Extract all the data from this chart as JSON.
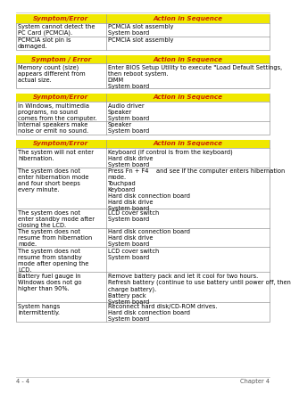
{
  "bg_color": "#ffffff",
  "header_bg": "#f0e800",
  "header_text_color": "#cc2200",
  "body_text_color": "#000000",
  "border_color": "#999999",
  "table1": {
    "header": [
      "Symptom/Error",
      "Action in Sequence"
    ],
    "rows": [
      [
        "System cannot detect the\nPC Card (PCMCIA).",
        "PCMCIA slot assembly\nSystem board"
      ],
      [
        "PCMCIA slot pin is\ndamaged.",
        "PCMCIA slot assembly"
      ]
    ]
  },
  "table2": {
    "header": [
      "Symptom / Error",
      "Action in Sequence"
    ],
    "rows": [
      [
        "Memory count (size)\nappears different from\nactual size.",
        "Enter BIOS Setup Utility to execute \"Load Default Settings,\nthen reboot system.\nDIMM\nSystem board"
      ]
    ]
  },
  "table3": {
    "header": [
      "Symptom/Error",
      "Action in Sequence"
    ],
    "rows": [
      [
        "In Windows, multimedia\nprograms, no sound\ncomes from the computer.",
        "Audio driver\nSpeaker\nSystem board"
      ],
      [
        "Internal speakers make\nnoise or emit no sound.",
        "Speaker\nSystem board"
      ]
    ]
  },
  "table4": {
    "header": [
      "Symptom/Error",
      "Action in Sequence"
    ],
    "rows": [
      [
        "The system will not enter\nhibernation.",
        "Keyboard (if control is from the keyboard)\nHard disk drive\nSystem board"
      ],
      [
        "The system does not\nenter hibernation mode\nand four short beeps\nevery minute.",
        "Press Fn + F4    and see if the computer enters hibernation\nmode.\nTouchpad\nKeyboard\nHard disk connection board\nHard disk drive\nSystem board"
      ],
      [
        "The system does not\nenter standby mode after\nclosing the LCD.",
        "LCD cover switch\nSystem board"
      ],
      [
        "The system does not\nresume from hibernation\nmode.",
        "Hard disk connection board\nHard disk drive\nSystem board"
      ],
      [
        "The system does not\nresume from standby\nmode after opening the\nLCD.",
        "LCD cover switch\nSystem board"
      ],
      [
        "Battery fuel gauge in\nWindows does not go\nhigher than 90%.",
        "Remove battery pack and let it cool for two hours.\nRefresh battery (continue to use battery until power off, then\ncharge battery).\nBattery pack\nSystem board"
      ],
      [
        "System hangs\nintermittently.",
        "Reconnect hard disk/CD-ROM drives.\nHard disk connection board\nSystem board"
      ]
    ]
  },
  "footer_left": "4 - 4",
  "footer_right": "Chapter 4",
  "font_size": 4.8,
  "header_font_size": 5.2,
  "col_split": 0.355
}
